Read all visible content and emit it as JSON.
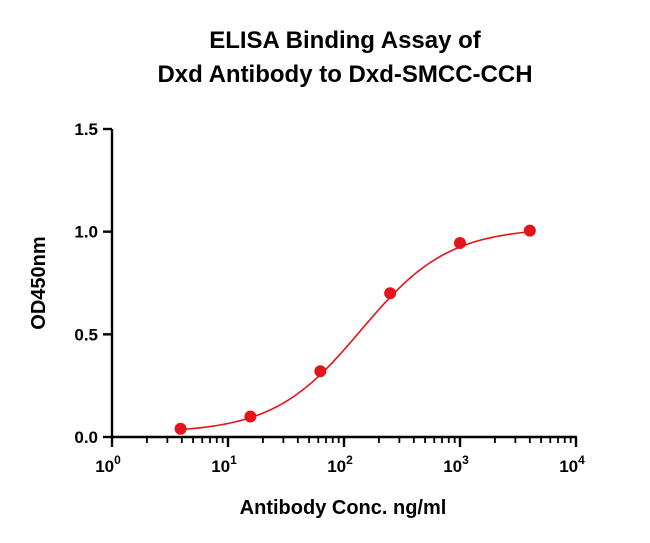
{
  "chart_data": {
    "type": "scatter",
    "title_lines": [
      "ELISA Binding Assay of",
      "Dxd Antibody to Dxd-SMCC-CCH"
    ],
    "xlabel": "Antibody Conc. ng/ml",
    "ylabel": "OD450nm",
    "x_scale": "log",
    "xlim": [
      1,
      10000
    ],
    "ylim": [
      0,
      1.5
    ],
    "x_ticks": [
      {
        "base": "10",
        "exp": "0",
        "value": 1
      },
      {
        "base": "10",
        "exp": "1",
        "value": 10
      },
      {
        "base": "10",
        "exp": "2",
        "value": 100
      },
      {
        "base": "10",
        "exp": "3",
        "value": 1000
      },
      {
        "base": "10",
        "exp": "4",
        "value": 10000
      }
    ],
    "y_ticks": [
      {
        "label": "0.0",
        "value": 0
      },
      {
        "label": "0.5",
        "value": 0.5
      },
      {
        "label": "1.0",
        "value": 1.0
      },
      {
        "label": "1.5",
        "value": 1.5
      }
    ],
    "grid": false,
    "color": "#e3151a",
    "series": [
      {
        "x": [
          3.9,
          15.6,
          62.5,
          250,
          1000,
          4000
        ],
        "y": [
          0.04,
          0.1,
          0.32,
          0.7,
          0.945,
          1.005
        ]
      }
    ],
    "fit_curve": {
      "model": "4PL",
      "bottom": 0.02,
      "top": 1.02,
      "ec50": 140,
      "hill": 1.15
    }
  }
}
